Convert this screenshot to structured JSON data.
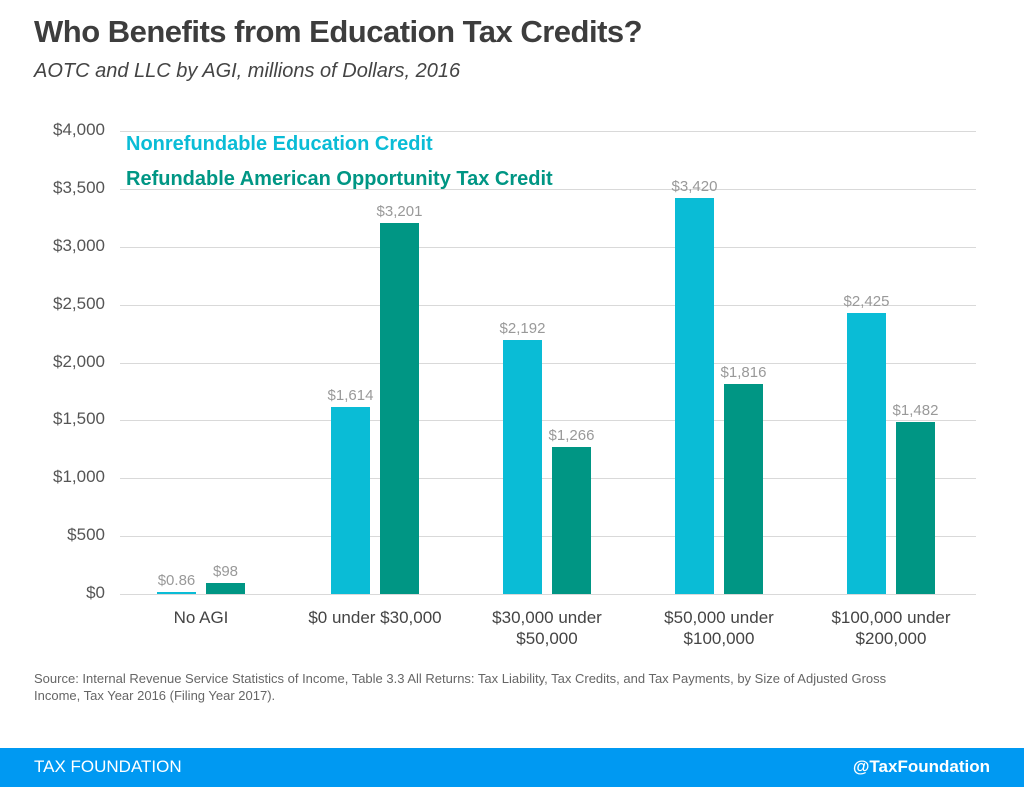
{
  "header": {
    "title": "Who Benefits from Education Tax Credits?",
    "subtitle": "AOTC and LLC by AGI, millions of Dollars, 2016"
  },
  "legend": {
    "items": [
      {
        "label": "Nonrefundable Education Credit",
        "color": "#0abcd6"
      },
      {
        "label": "Refundable American Opportunity Tax Credit",
        "color": "#009684"
      }
    ]
  },
  "y_ticks": [
    "$4,000",
    "$3,500",
    "$3,000",
    "$2,500",
    "$2,000",
    "$1,500",
    "$1,000",
    "$500",
    "$0"
  ],
  "x_labels": [
    [
      "No AGI",
      ""
    ],
    [
      "$0 under $30,000",
      ""
    ],
    [
      "$30,000 under",
      "$50,000"
    ],
    [
      "$50,000 under",
      "$100,000"
    ],
    [
      "$100,000 under",
      "$200,000"
    ]
  ],
  "value_labels": {
    "s0": [
      "$0.86",
      "$1,614",
      "$2,192",
      "$3,420",
      "$2,425"
    ],
    "s1": [
      "$98",
      "$3,201",
      "$1,266",
      "$1,816",
      "$1,482"
    ]
  },
  "source": "Source: Internal Revenue Service Statistics of Income, Table 3.3 All Returns: Tax Liability, Tax Credits, and Tax Payments, by Size of Adjusted Gross Income, Tax Year 2016 (Filing Year 2017).",
  "footer": {
    "brand": "TAX FOUNDATION",
    "handle": "@TaxFoundation",
    "color": "#0099f2"
  },
  "chart_data": {
    "type": "bar",
    "title": "Who Benefits from Education Tax Credits?",
    "subtitle": "AOTC and LLC by AGI, millions of Dollars, 2016",
    "categories": [
      "No AGI",
      "$0 under $30,000",
      "$30,000 under $50,000",
      "$50,000 under $100,000",
      "$100,000 under $200,000"
    ],
    "series": [
      {
        "name": "Nonrefundable Education Credit",
        "color": "#0abcd6",
        "values": [
          0.86,
          1614,
          2192,
          3420,
          2425
        ]
      },
      {
        "name": "Refundable American Opportunity Tax Credit",
        "color": "#009684",
        "values": [
          98,
          3201,
          1266,
          1816,
          1482
        ]
      }
    ],
    "xlabel": "",
    "ylabel": "",
    "ylim": [
      0,
      4000
    ],
    "yticks": [
      0,
      500,
      1000,
      1500,
      2000,
      2500,
      3000,
      3500,
      4000
    ],
    "grid": true,
    "legend_position": "top-left inside plot",
    "data_labels": true
  }
}
